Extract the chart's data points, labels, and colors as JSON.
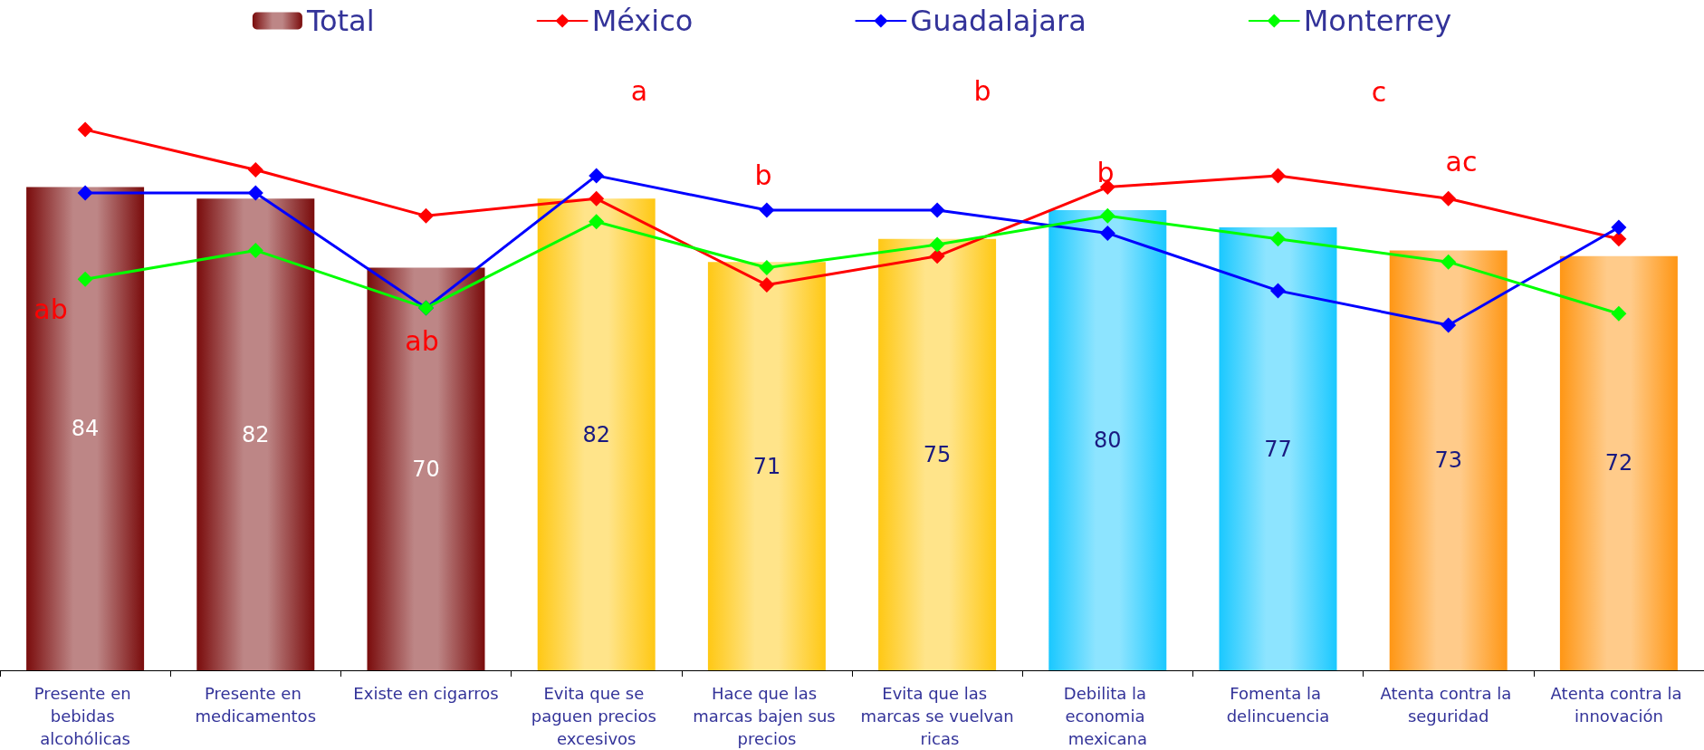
{
  "chart_data": {
    "type": "bar",
    "categories": [
      "Presente en bebidas alcohólicas",
      "Presente en medicamentos",
      "Existe en cigarros",
      "Evita que se paguen precios excesivos",
      "Hace que las marcas bajen sus precios",
      "Evita que las marcas se vuelvan ricas",
      "Debilita la economia mexicana",
      "Fomenta la delincuencia",
      "Atenta contra la seguridad",
      "Atenta contra la innovación"
    ],
    "tick_labels": "x",
    "legend": "top",
    "marker": "diamond",
    "line_style": "solid",
    "series": [
      {
        "name": "Total",
        "colors": [
          "#7a0c0c",
          "#7a0c0c",
          "#7a0c0c",
          "#ffc814",
          "#ffc814",
          "#ffc814",
          "#1ac8ff",
          "#1ac8ff",
          "#ff9614",
          "#ff9614"
        ],
        "values": [
          84,
          82,
          70,
          82,
          71,
          75,
          80,
          77,
          73,
          72
        ],
        "value_labels": [
          "84",
          "82",
          "70",
          "82",
          "71",
          "75",
          "80",
          "77",
          "73",
          "72"
        ]
      },
      {
        "name": "México",
        "type": "line",
        "color": "#ff0000",
        "values": [
          94,
          87,
          79,
          82,
          67,
          72,
          84,
          86,
          82,
          75
        ]
      },
      {
        "name": "Guadalajara",
        "type": "line",
        "color": "#0000ff",
        "values": [
          83,
          83,
          63,
          86,
          80,
          80,
          76,
          66,
          60,
          77
        ]
      },
      {
        "name": "Monterrey",
        "type": "line",
        "color": "#00ff00",
        "values": [
          68,
          73,
          63,
          78,
          70,
          74,
          79,
          75,
          71,
          62
        ]
      }
    ],
    "annotations": [
      "ab",
      "ab",
      "a",
      "b",
      "b",
      "b",
      "c",
      "ac"
    ]
  }
}
